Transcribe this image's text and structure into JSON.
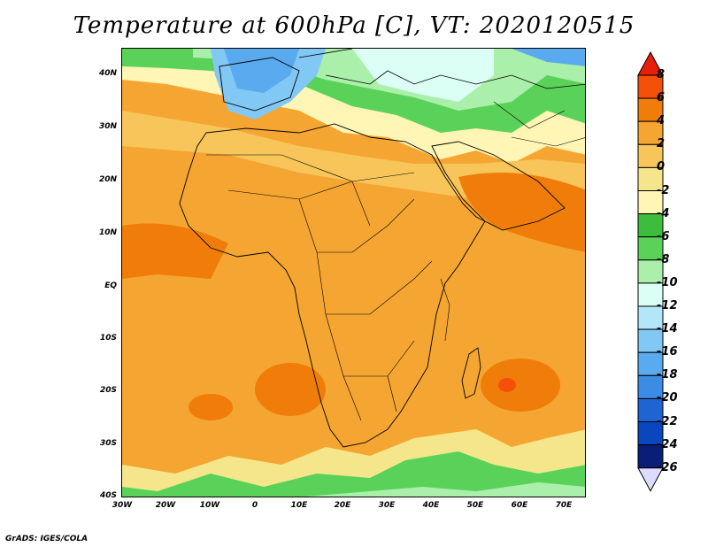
{
  "title": "Temperature at 600hPa [C], VT: 2020120515",
  "footer": "GrADS: IGES/COLA",
  "map": {
    "lat_labels": [
      "40N",
      "30N",
      "20N",
      "10N",
      "EQ",
      "10S",
      "20S",
      "30S",
      "40S"
    ],
    "lon_labels": [
      "30W",
      "20W",
      "10W",
      "0",
      "10E",
      "20E",
      "30E",
      "40E",
      "50E",
      "60E",
      "70E"
    ]
  },
  "colorbar": {
    "labels": [
      "8",
      "6",
      "4",
      "2",
      "0",
      "-2",
      "-4",
      "-6",
      "-8",
      "-10",
      "-12",
      "-14",
      "-16",
      "-18",
      "-20",
      "-22",
      "-24",
      "-26"
    ],
    "colors": [
      "#e61e0a",
      "#f5500a",
      "#f07d0a",
      "#f5a532",
      "#f7c55a",
      "#f5e68c",
      "#fff5b4",
      "#3cbe3c",
      "#5ad25a",
      "#aaf0aa",
      "#dcfff5",
      "#b4e6fa",
      "#82c8f5",
      "#5aaaf0",
      "#3c8ce6",
      "#1e64d2",
      "#0a46be",
      "#0a1e78",
      "#dcdcff"
    ]
  }
}
